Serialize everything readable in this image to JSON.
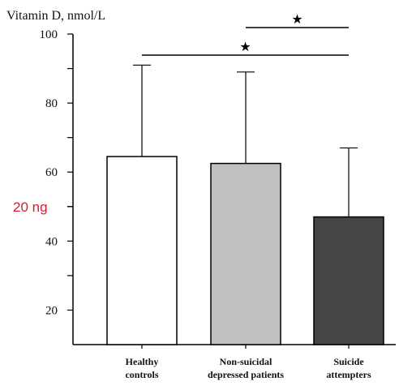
{
  "chart_data": {
    "type": "bar",
    "ylabel": "Vitamin D, nmol/L",
    "ylim": [
      10,
      100
    ],
    "yticks": [
      20,
      40,
      60,
      80,
      100
    ],
    "categories": [
      [
        "Healthy",
        "controls"
      ],
      [
        "Non-suicidal",
        "depressed patients"
      ],
      [
        "Suicide",
        "attempters"
      ]
    ],
    "values": [
      64.5,
      62.5,
      47
    ],
    "error_upper": [
      91,
      89,
      67
    ],
    "colors": [
      "#ffffff",
      "#c0c0c0",
      "#454545"
    ],
    "significance": [
      {
        "from": 0,
        "to": 2,
        "label": "★"
      },
      {
        "from": 1,
        "to": 2,
        "label": "★"
      }
    ],
    "annotation": {
      "text": "20 ng",
      "value": 50
    },
    "grid": false,
    "legend": "none"
  }
}
